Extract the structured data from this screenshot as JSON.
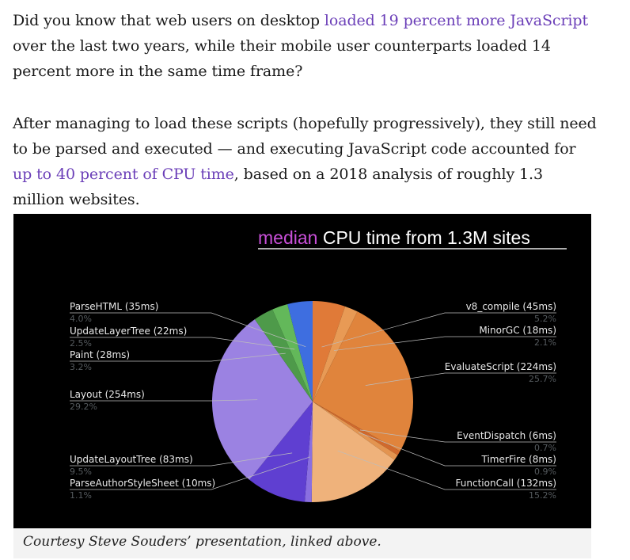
{
  "article": {
    "p1": {
      "t1": "Did you know that web users on desktop ",
      "link": "loaded 19 percent more JavaScript",
      "t2": " over the last two years, while their mobile user counterparts loaded 14 percent more in the same time frame?"
    },
    "p2": {
      "t1": "After managing to load these scripts (hopefully progressively), they still need to be parsed and executed — and executing JavaScript code accounted for ",
      "link": "up to 40 percent of CPU time",
      "t2": ", based on a 2018 analysis of roughly 1.3 million websites."
    }
  },
  "figure": {
    "title_highlight": "median",
    "title_rest": " CPU time from 1.3M sites",
    "caption": "Courtesy Steve Souders’ presentation, linked above."
  },
  "chart_data": {
    "type": "pie",
    "title": "median CPU time from 1.3M sites",
    "slices": [
      {
        "label": "v8_compile (45ms)",
        "value": 5.2,
        "pct": "5.2%",
        "color": "#e07a38"
      },
      {
        "label": "MinorGC (18ms)",
        "value": 2.1,
        "pct": "2.1%",
        "color": "#e89a55"
      },
      {
        "label": "EvaluateScript (224ms)",
        "value": 25.7,
        "pct": "25.7%",
        "color": "#e0843c"
      },
      {
        "label": "EventDispatch (6ms)",
        "value": 0.7,
        "pct": "0.7%",
        "color": "#d0692d"
      },
      {
        "label": "TimerFire (8ms)",
        "value": 0.9,
        "pct": "0.9%",
        "color": "#e39450"
      },
      {
        "label": "FunctionCall (132ms)",
        "value": 15.2,
        "pct": "15.2%",
        "color": "#efb27b"
      },
      {
        "label": "ParseAuthorStyleSheet (10ms)",
        "value": 1.1,
        "pct": "1.1%",
        "color": "#8a6fe0"
      },
      {
        "label": "UpdateLayoutTree (83ms)",
        "value": 9.5,
        "pct": "9.5%",
        "color": "#5f3fd1"
      },
      {
        "label": "Layout (254ms)",
        "value": 29.2,
        "pct": "29.2%",
        "color": "#9b82e2"
      },
      {
        "label": "Paint (28ms)",
        "value": 3.2,
        "pct": "3.2%",
        "color": "#4e9a4a"
      },
      {
        "label": "UpdateLayerTree (22ms)",
        "value": 2.5,
        "pct": "2.5%",
        "color": "#63b85a"
      },
      {
        "label": "ParseHTML (35ms)",
        "value": 4.0,
        "pct": "4.0%",
        "color": "#3e6ee0"
      }
    ]
  }
}
